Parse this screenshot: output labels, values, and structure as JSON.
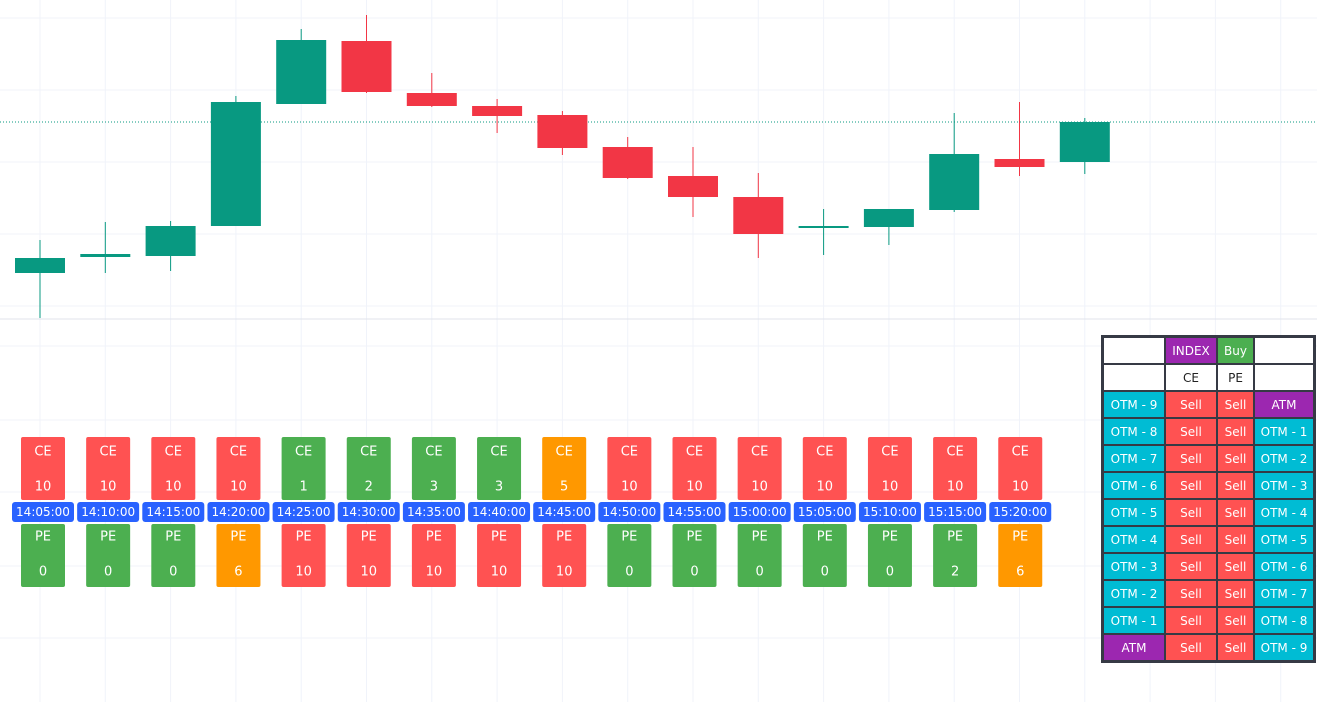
{
  "candles": {
    "type": "candlestick",
    "ylim": [
      0,
      330
    ],
    "up_color": "#089981",
    "down_color": "#f23645",
    "series": [
      {
        "open": 57,
        "high": 90,
        "low": 12,
        "close": 72
      },
      {
        "open": 73,
        "high": 108,
        "low": 57,
        "close": 76
      },
      {
        "open": 74,
        "high": 109,
        "low": 59,
        "close": 104
      },
      {
        "open": 104,
        "high": 234,
        "low": 104,
        "close": 228
      },
      {
        "open": 226,
        "high": 301,
        "low": 226,
        "close": 290
      },
      {
        "open": 289,
        "high": 315,
        "low": 237,
        "close": 238
      },
      {
        "open": 237,
        "high": 257,
        "low": 223,
        "close": 224
      },
      {
        "open": 224,
        "high": 231,
        "low": 197,
        "close": 214
      },
      {
        "open": 215,
        "high": 219,
        "low": 175,
        "close": 182
      },
      {
        "open": 183,
        "high": 193,
        "low": 151,
        "close": 152
      },
      {
        "open": 154,
        "high": 183,
        "low": 113,
        "close": 133
      },
      {
        "open": 133,
        "high": 157,
        "low": 72,
        "close": 96
      },
      {
        "open": 103,
        "high": 121,
        "low": 75,
        "close": 104
      },
      {
        "open": 103,
        "high": 121,
        "low": 85,
        "close": 121
      },
      {
        "open": 120,
        "high": 217,
        "low": 118,
        "close": 176
      },
      {
        "open": 171,
        "high": 228,
        "low": 154,
        "close": 163
      },
      {
        "open": 168,
        "high": 212,
        "low": 156,
        "close": 208
      }
    ]
  },
  "signals": [
    {
      "time": "14:05:00",
      "ce": {
        "label": "CE",
        "value": 10,
        "color": "#ff5252"
      },
      "pe": {
        "label": "PE",
        "value": 0,
        "color": "#4caf50"
      }
    },
    {
      "time": "14:10:00",
      "ce": {
        "label": "CE",
        "value": 10,
        "color": "#ff5252"
      },
      "pe": {
        "label": "PE",
        "value": 0,
        "color": "#4caf50"
      }
    },
    {
      "time": "14:15:00",
      "ce": {
        "label": "CE",
        "value": 10,
        "color": "#ff5252"
      },
      "pe": {
        "label": "PE",
        "value": 0,
        "color": "#4caf50"
      }
    },
    {
      "time": "14:20:00",
      "ce": {
        "label": "CE",
        "value": 10,
        "color": "#ff5252"
      },
      "pe": {
        "label": "PE",
        "value": 6,
        "color": "#ff9800"
      }
    },
    {
      "time": "14:25:00",
      "ce": {
        "label": "CE",
        "value": 1,
        "color": "#4caf50"
      },
      "pe": {
        "label": "PE",
        "value": 10,
        "color": "#ff5252"
      }
    },
    {
      "time": "14:30:00",
      "ce": {
        "label": "CE",
        "value": 2,
        "color": "#4caf50"
      },
      "pe": {
        "label": "PE",
        "value": 10,
        "color": "#ff5252"
      }
    },
    {
      "time": "14:35:00",
      "ce": {
        "label": "CE",
        "value": 3,
        "color": "#4caf50"
      },
      "pe": {
        "label": "PE",
        "value": 10,
        "color": "#ff5252"
      }
    },
    {
      "time": "14:40:00",
      "ce": {
        "label": "CE",
        "value": 3,
        "color": "#4caf50"
      },
      "pe": {
        "label": "PE",
        "value": 10,
        "color": "#ff5252"
      }
    },
    {
      "time": "14:45:00",
      "ce": {
        "label": "CE",
        "value": 5,
        "color": "#ff9800"
      },
      "pe": {
        "label": "PE",
        "value": 10,
        "color": "#ff5252"
      }
    },
    {
      "time": "14:50:00",
      "ce": {
        "label": "CE",
        "value": 10,
        "color": "#ff5252"
      },
      "pe": {
        "label": "PE",
        "value": 0,
        "color": "#4caf50"
      }
    },
    {
      "time": "14:55:00",
      "ce": {
        "label": "CE",
        "value": 10,
        "color": "#ff5252"
      },
      "pe": {
        "label": "PE",
        "value": 0,
        "color": "#4caf50"
      }
    },
    {
      "time": "15:00:00",
      "ce": {
        "label": "CE",
        "value": 10,
        "color": "#ff5252"
      },
      "pe": {
        "label": "PE",
        "value": 0,
        "color": "#4caf50"
      }
    },
    {
      "time": "15:05:00",
      "ce": {
        "label": "CE",
        "value": 10,
        "color": "#ff5252"
      },
      "pe": {
        "label": "PE",
        "value": 0,
        "color": "#4caf50"
      }
    },
    {
      "time": "15:10:00",
      "ce": {
        "label": "CE",
        "value": 10,
        "color": "#ff5252"
      },
      "pe": {
        "label": "PE",
        "value": 0,
        "color": "#4caf50"
      }
    },
    {
      "time": "15:15:00",
      "ce": {
        "label": "CE",
        "value": 10,
        "color": "#ff5252"
      },
      "pe": {
        "label": "PE",
        "value": 2,
        "color": "#4caf50"
      }
    },
    {
      "time": "15:20:00",
      "ce": {
        "label": "CE",
        "value": 10,
        "color": "#ff5252"
      },
      "pe": {
        "label": "PE",
        "value": 6,
        "color": "#ff9800"
      }
    }
  ],
  "table": {
    "rows": [
      [
        null,
        {
          "text": "INDEX",
          "color": "#9c27b0"
        },
        {
          "text": "Buy",
          "color": "#4caf50"
        },
        null
      ],
      [
        null,
        {
          "text": "CE",
          "color": "#ffffff"
        },
        {
          "text": "PE",
          "color": "#ffffff"
        },
        null
      ],
      [
        {
          "text": "OTM - 9",
          "color": "#00bcd4"
        },
        {
          "text": "Sell",
          "color": "#ff5252"
        },
        {
          "text": "Sell",
          "color": "#ff5252"
        },
        {
          "text": "ATM",
          "color": "#9c27b0"
        }
      ],
      [
        {
          "text": "OTM - 8",
          "color": "#00bcd4"
        },
        {
          "text": "Sell",
          "color": "#ff5252"
        },
        {
          "text": "Sell",
          "color": "#ff5252"
        },
        {
          "text": "OTM - 1",
          "color": "#00bcd4"
        }
      ],
      [
        {
          "text": "OTM - 7",
          "color": "#00bcd4"
        },
        {
          "text": "Sell",
          "color": "#ff5252"
        },
        {
          "text": "Sell",
          "color": "#ff5252"
        },
        {
          "text": "OTM - 2",
          "color": "#00bcd4"
        }
      ],
      [
        {
          "text": "OTM - 6",
          "color": "#00bcd4"
        },
        {
          "text": "Sell",
          "color": "#ff5252"
        },
        {
          "text": "Sell",
          "color": "#ff5252"
        },
        {
          "text": "OTM - 3",
          "color": "#00bcd4"
        }
      ],
      [
        {
          "text": "OTM - 5",
          "color": "#00bcd4"
        },
        {
          "text": "Sell",
          "color": "#ff5252"
        },
        {
          "text": "Sell",
          "color": "#ff5252"
        },
        {
          "text": "OTM - 4",
          "color": "#00bcd4"
        }
      ],
      [
        {
          "text": "OTM - 4",
          "color": "#00bcd4"
        },
        {
          "text": "Sell",
          "color": "#ff5252"
        },
        {
          "text": "Sell",
          "color": "#ff5252"
        },
        {
          "text": "OTM - 5",
          "color": "#00bcd4"
        }
      ],
      [
        {
          "text": "OTM - 3",
          "color": "#00bcd4"
        },
        {
          "text": "Sell",
          "color": "#ff5252"
        },
        {
          "text": "Sell",
          "color": "#ff5252"
        },
        {
          "text": "OTM - 6",
          "color": "#00bcd4"
        }
      ],
      [
        {
          "text": "OTM - 2",
          "color": "#00bcd4"
        },
        {
          "text": "Sell",
          "color": "#ff5252"
        },
        {
          "text": "Sell",
          "color": "#ff5252"
        },
        {
          "text": "OTM - 7",
          "color": "#00bcd4"
        }
      ],
      [
        {
          "text": "OTM - 1",
          "color": "#00bcd4"
        },
        {
          "text": "Sell",
          "color": "#ff5252"
        },
        {
          "text": "Sell",
          "color": "#ff5252"
        },
        {
          "text": "OTM - 8",
          "color": "#00bcd4"
        }
      ],
      [
        {
          "text": "ATM",
          "color": "#9c27b0"
        },
        {
          "text": "Sell",
          "color": "#ff5252"
        },
        {
          "text": "Sell",
          "color": "#ff5252"
        },
        {
          "text": "OTM - 9",
          "color": "#00bcd4"
        }
      ]
    ]
  }
}
